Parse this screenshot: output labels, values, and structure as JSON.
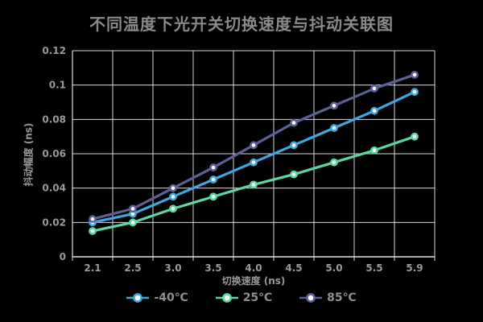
{
  "chart_data": {
    "type": "line",
    "title": "不同温度下光开关切换速度与抖动关联图",
    "xlabel": "切换速度 (ns)",
    "ylabel": "抖动幅度 (ns)",
    "categories": [
      "2.1",
      "2.5",
      "3.0",
      "3.5",
      "4.0",
      "4.5",
      "5.0",
      "5.5",
      "5.9"
    ],
    "series": [
      {
        "name": "-40℃",
        "color": "#3fa6df",
        "values": [
          0.02,
          0.025,
          0.035,
          0.045,
          0.055,
          0.065,
          0.075,
          0.085,
          0.096
        ]
      },
      {
        "name": "25℃",
        "color": "#5bd7a2",
        "values": [
          0.015,
          0.02,
          0.028,
          0.035,
          0.042,
          0.048,
          0.055,
          0.062,
          0.07
        ]
      },
      {
        "name": "85℃",
        "color": "#5b6095",
        "values": [
          0.022,
          0.028,
          0.04,
          0.052,
          0.065,
          0.078,
          0.088,
          0.098,
          0.106
        ]
      }
    ],
    "ylim": [
      0,
      0.12
    ],
    "y_ticks": [
      "0",
      "0.02",
      "0.04",
      "0.06",
      "0.08",
      "0.1",
      "0.12"
    ],
    "grid": true,
    "legend_position": "bottom",
    "marker": "circle-white-fill"
  },
  "style": {
    "background": "#000000",
    "title_color": "#8a8a8a",
    "tick_label_color": "#9a9a9a",
    "grid_color": "#d9d9d9",
    "axis_color": "#e2e2e2",
    "legend_text_color": "#8f8f8f",
    "marker_fill": "#ffffff"
  }
}
